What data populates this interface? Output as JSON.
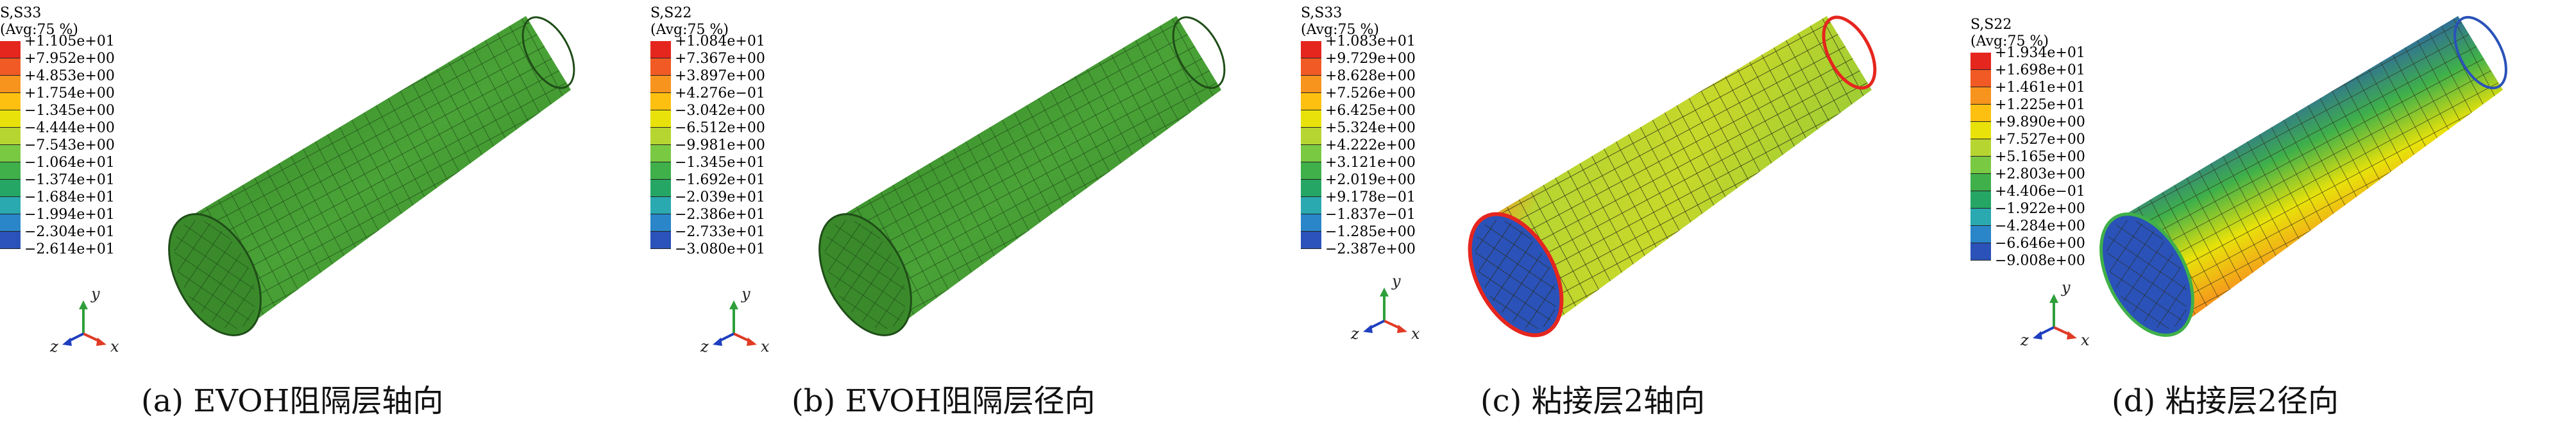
{
  "legend_colors": [
    "#e5261f",
    "#f15a24",
    "#f7941d",
    "#fdc010",
    "#e8e20a",
    "#b7d531",
    "#7ac943",
    "#3fb04a",
    "#25a665",
    "#2aa9b0",
    "#2a86c8",
    "#2a52b8",
    "#1b1e8f"
  ],
  "triad_colors": {
    "y": "#2e9f3a",
    "x": "#e03b26",
    "z": "#1f3fbf"
  },
  "panels": [
    {
      "legend_title": "S,S33",
      "legend_avg": "(Avg:75 %)",
      "legend_values": [
        "+1.105e+01",
        "+7.952e+00",
        "+4.853e+00",
        "+1.754e+00",
        "−1.345e+00",
        "−4.444e+00",
        "−7.543e+00",
        "−1.064e+01",
        "−1.374e+01",
        "−1.684e+01",
        "−1.994e+01",
        "−2.304e+01",
        "−2.614e+01"
      ],
      "axis_labels": {
        "y": "y",
        "z": "z",
        "x": "x"
      },
      "caption": "(a) EVOH阻隔层轴向",
      "colormap": [
        "#3d8f2a",
        "#4aa337",
        "#3d8f2a"
      ]
    },
    {
      "legend_title": "S,S22",
      "legend_avg": "(Avg:75 %)",
      "legend_values": [
        "+1.084e+01",
        "+7.367e+00",
        "+3.897e+00",
        "+4.276e−01",
        "−3.042e+00",
        "−6.512e+00",
        "−9.981e+00",
        "−1.345e+01",
        "−1.692e+01",
        "−2.039e+01",
        "−2.386e+01",
        "−2.733e+01",
        "−3.080e+01"
      ],
      "axis_labels": {
        "y": "y",
        "z": "z",
        "x": "x"
      },
      "caption": "(b) EVOH阻隔层径向",
      "colormap": [
        "#3d8f2a",
        "#4aa337",
        "#3d8f2a"
      ]
    },
    {
      "legend_title": "S,S33",
      "legend_avg": "(Avg:75 %)",
      "legend_values": [
        "+1.083e+01",
        "+9.729e+00",
        "+8.628e+00",
        "+7.526e+00",
        "+6.425e+00",
        "+5.324e+00",
        "+4.222e+00",
        "+3.121e+00",
        "+2.019e+00",
        "+9.178e−01",
        "−1.837e−01",
        "−1.285e+00",
        "−2.387e+00"
      ],
      "axis_labels": {
        "y": "y",
        "z": "z",
        "x": "x"
      },
      "caption": "(c) 粘接层2轴向",
      "colormap": [
        "#8fcf2a",
        "#c7d82a",
        "#9ccc34"
      ]
    },
    {
      "legend_title": "S,S22",
      "legend_avg": "(Avg:75 %)",
      "legend_values": [
        "+1.934e+01",
        "+1.698e+01",
        "+1.461e+01",
        "+1.225e+01",
        "+9.890e+00",
        "+7.527e+00",
        "+5.165e+00",
        "+2.803e+00",
        "+4.406e−01",
        "−1.922e+00",
        "−4.284e+00",
        "−6.646e+00",
        "−9.008e+00"
      ],
      "axis_labels": {
        "y": "y",
        "z": "z",
        "x": "x"
      },
      "caption": "(d) 粘接层2径向",
      "colormap": [
        "#2d43b5",
        "#3fb04a",
        "#e5261f"
      ]
    }
  ]
}
